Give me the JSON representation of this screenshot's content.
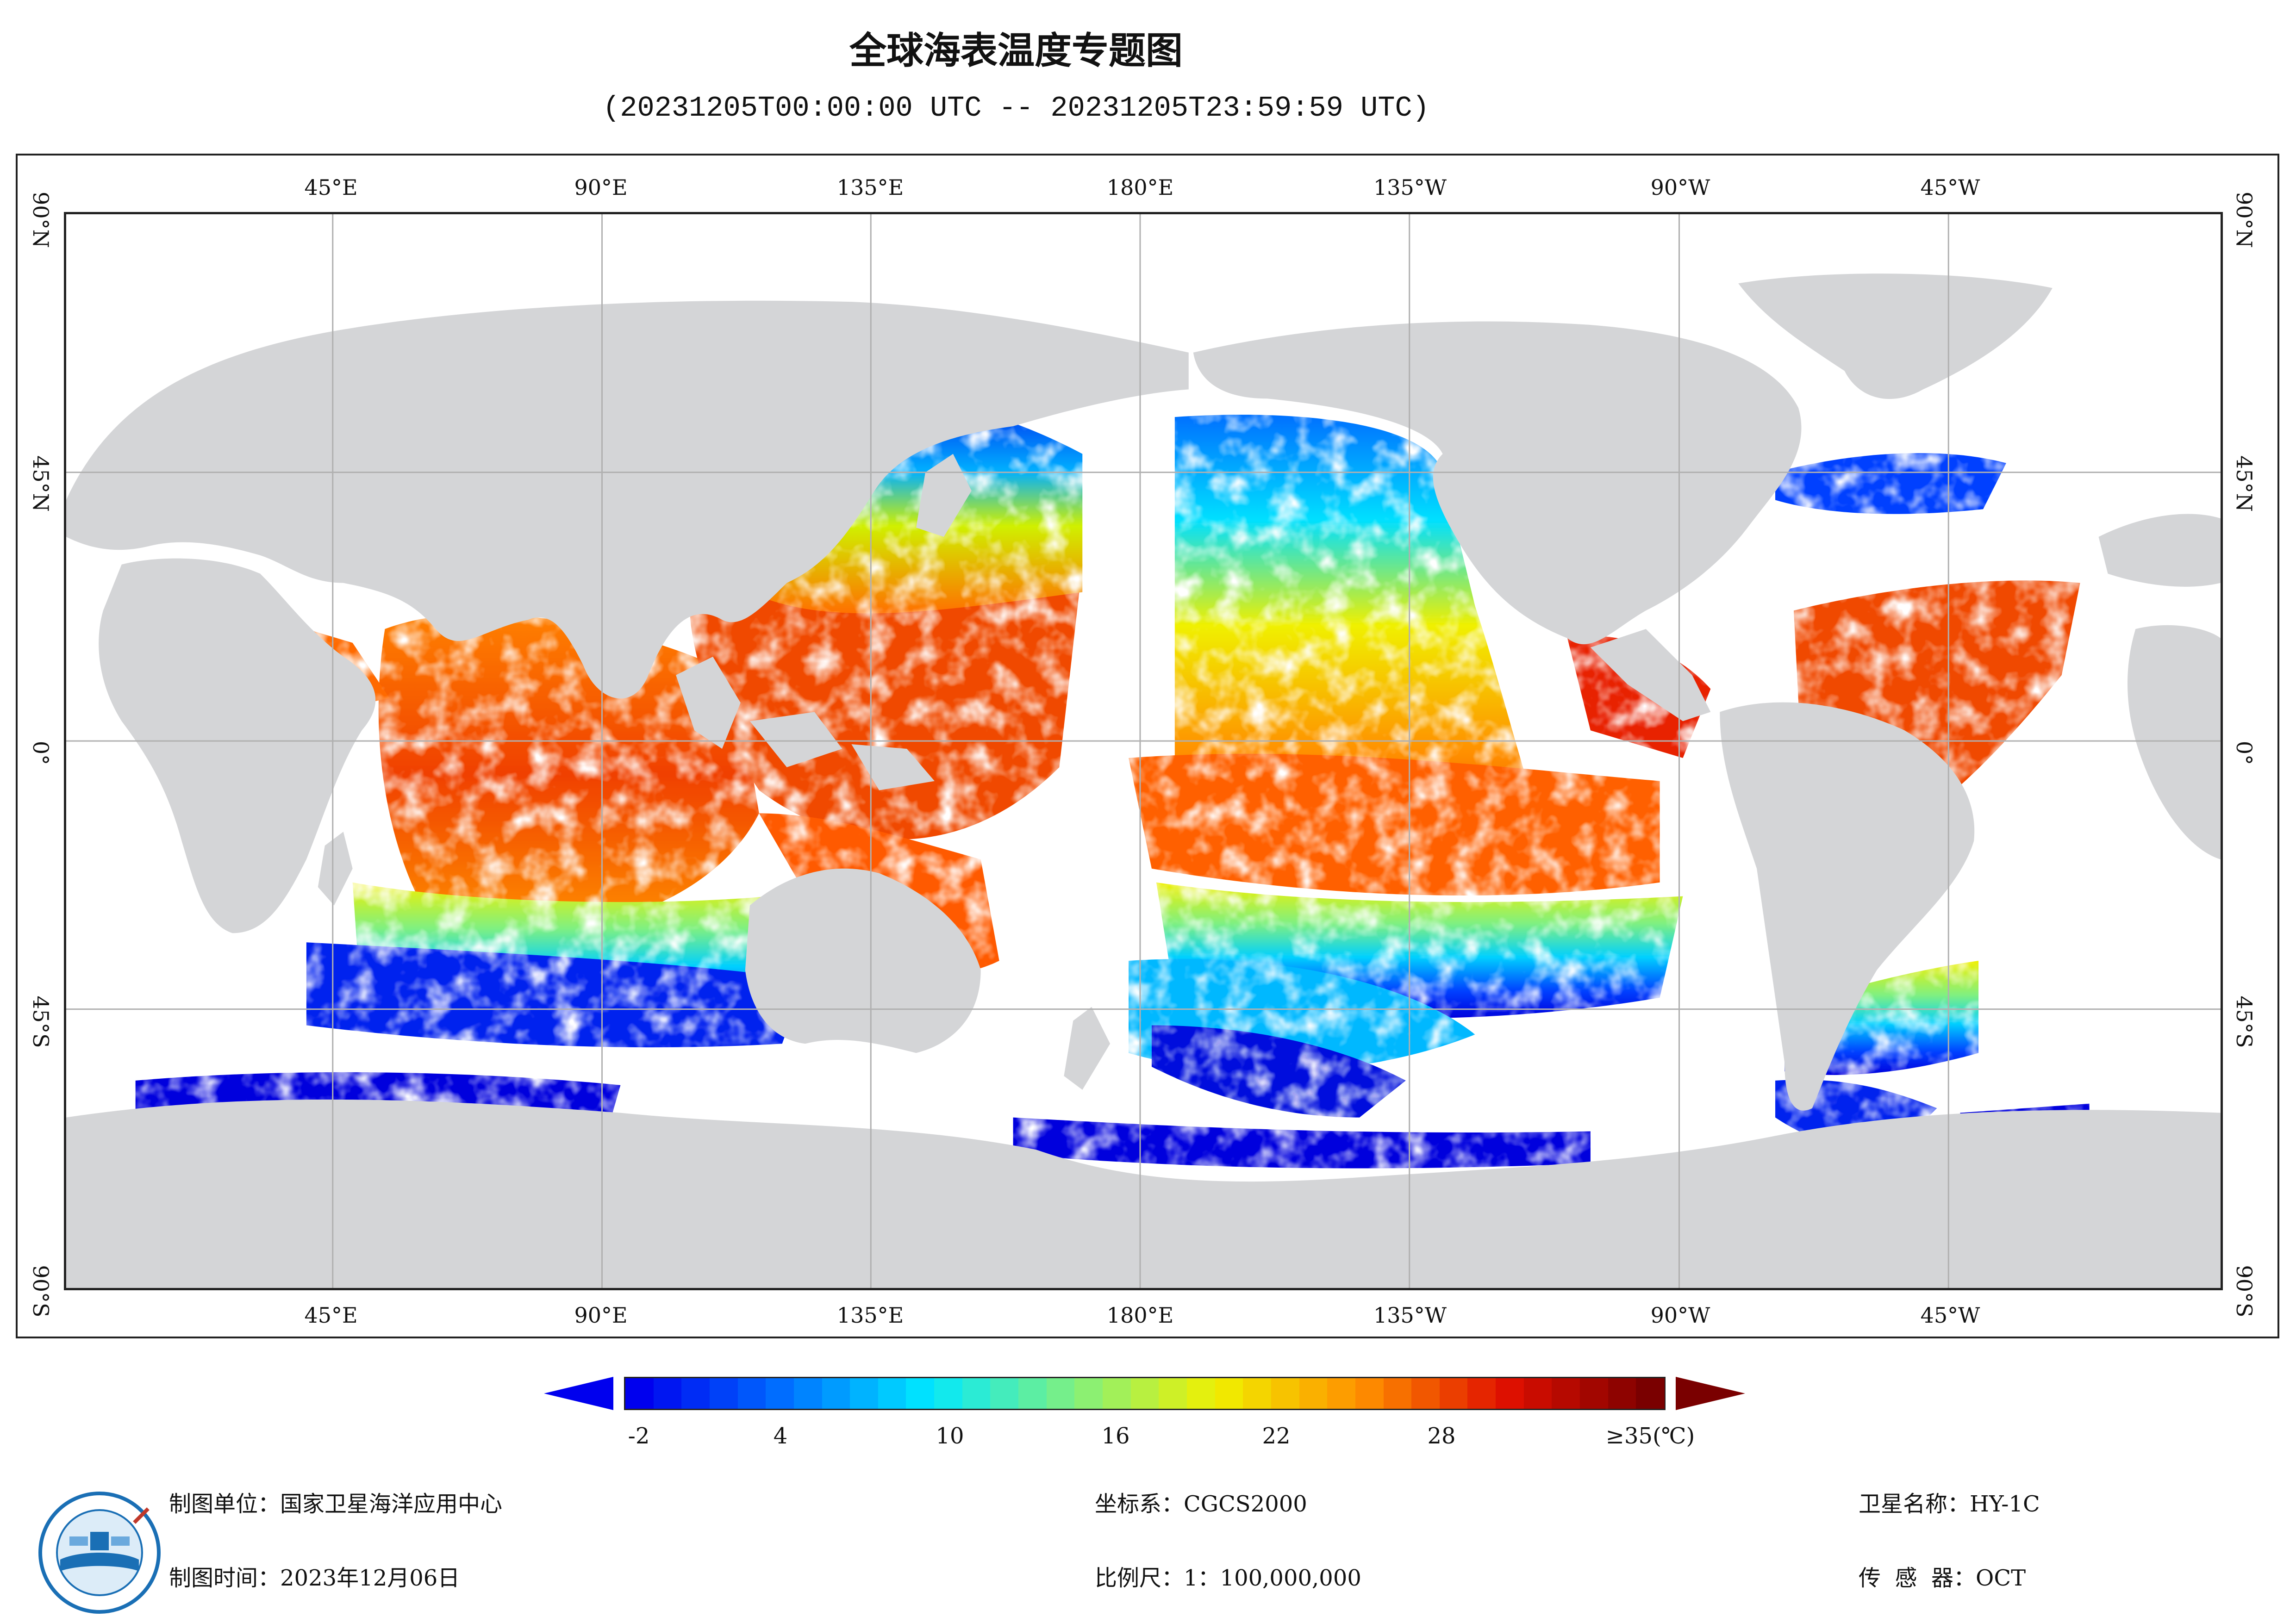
{
  "title": "全球海表温度专题图",
  "subtitle": "(20231205T00:00:00 UTC -- 20231205T23:59:59 UTC)",
  "map": {
    "lon_labels": [
      "45°E",
      "90°E",
      "135°E",
      "180°E",
      "135°W",
      "90°W",
      "45°W"
    ],
    "lat_labels": [
      "90°N",
      "45°N",
      "0°",
      "45°S",
      "90°S"
    ],
    "land_color": "#d4d5d7",
    "ocean_nodata_color": "#ffffff",
    "gridline_color": "#b0b0b0"
  },
  "colorbar": {
    "tick_labels": [
      "-2",
      "4",
      "10",
      "16",
      "22",
      "28",
      "≥35(℃)"
    ],
    "tick_values": [
      -2,
      4,
      10,
      16,
      22,
      28,
      35
    ],
    "min": -2,
    "max": 35,
    "unit": "℃",
    "colors": [
      "#0000ee",
      "#0070ff",
      "#00e8ff",
      "#80f080",
      "#f0f000",
      "#ff9000",
      "#e01000",
      "#7a0000"
    ]
  },
  "footer": {
    "producer": "制图单位：国家卫星海洋应用中心",
    "date": "制图时间：2023年12月06日",
    "crs": "坐标系：CGCS2000",
    "scale": "比例尺：1：100,000,000",
    "satellite": "卫星名称：HY-1C",
    "sensor": "传  感  器：OCT"
  },
  "logo": {
    "icon": "nsoas-logo-icon"
  }
}
